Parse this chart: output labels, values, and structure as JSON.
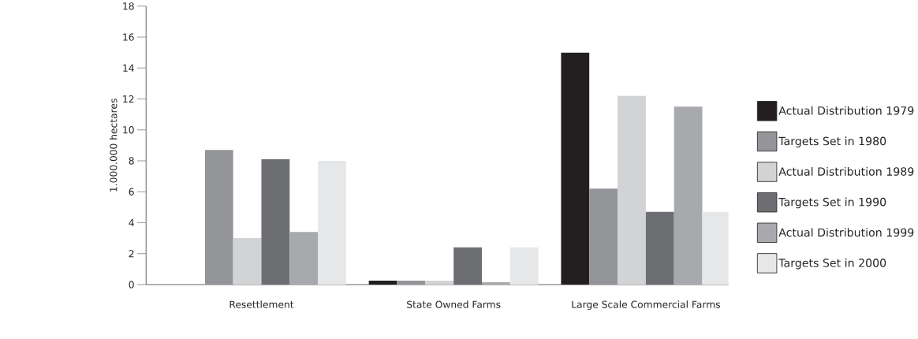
{
  "chart_data": {
    "type": "bar",
    "ylabel": "1.000.000 hectares",
    "categories": [
      "Resettlement",
      "State Owned Farms",
      "Large Scale Commercial Farms"
    ],
    "series": [
      {
        "name": "Actual Distribution 1979",
        "color": "#231f20",
        "values": [
          0,
          0.25,
          15.0
        ]
      },
      {
        "name": "Targets Set in 1980",
        "color": "#939598",
        "values": [
          8.7,
          0.25,
          6.2
        ]
      },
      {
        "name": "Actual Distribution 1989",
        "color": "#d1d3d4",
        "values": [
          3.0,
          0.25,
          12.2
        ]
      },
      {
        "name": "Targets Set in 1990",
        "color": "#6d6e71",
        "values": [
          8.1,
          2.4,
          4.7
        ]
      },
      {
        "name": "Actual Distribution 1999",
        "color": "#a7a9ac",
        "values": [
          3.4,
          0.15,
          11.5
        ]
      },
      {
        "name": "Targets Set in 2000",
        "color": "#e6e7e8",
        "values": [
          8.0,
          2.4,
          4.7
        ]
      }
    ],
    "ylim": [
      0,
      18
    ],
    "yticks": [
      0,
      2,
      4,
      6,
      8,
      10,
      12,
      14,
      16,
      18
    ],
    "grid": false,
    "legend": "right"
  }
}
